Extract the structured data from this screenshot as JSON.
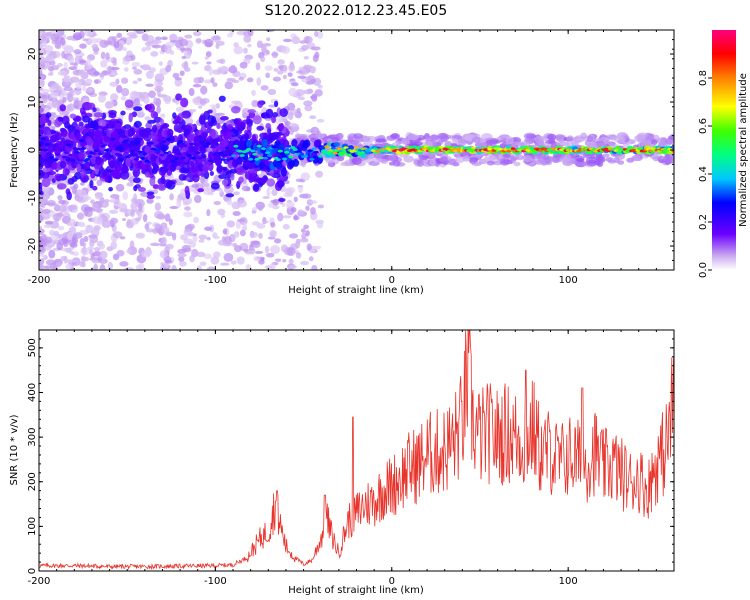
{
  "figure_title": "S120.2022.012.23.45.E05",
  "colors": {
    "snr_line": "#e8332b",
    "spectrum_low": "#e9d4f5",
    "spectrum_mid": "#6a00ff",
    "spectrum_high": "#ff1430"
  },
  "chart_data": [
    {
      "type": "heatmap",
      "title": "",
      "xlabel": "Height of straight line (km)",
      "ylabel": "Frequency (Hz)",
      "xlim": [
        -200,
        160
      ],
      "ylim": [
        -25,
        25
      ],
      "x_ticks": [
        -200,
        -100,
        0,
        100
      ],
      "y_ticks": [
        -20,
        -10,
        0,
        10,
        20
      ],
      "colorbar": {
        "label": "Normalized spectral amplitude",
        "range": [
          0,
          1
        ],
        "ticks": [
          0.0,
          0.2,
          0.4,
          0.6,
          0.8
        ],
        "colormap": "rainbow (purple-blue-cyan-green-yellow-red-pink)"
      },
      "description_of_structure": {
        "ridge_frequency_hz": 0,
        "scatter_region_km": [
          -200,
          -60
        ],
        "peak_amplitude_region_km": [
          -30,
          160
        ]
      }
    },
    {
      "type": "line",
      "title": "",
      "xlabel": "Height of straight line (km)",
      "ylabel": "SNR (10 * v/v)",
      "xlim": [
        -200,
        160
      ],
      "ylim": [
        0,
        540
      ],
      "x_ticks": [
        -200,
        -100,
        0,
        100
      ],
      "y_ticks": [
        0,
        100,
        200,
        300,
        400,
        500
      ],
      "series": [
        {
          "envelope_points": [
            [
              -200,
              12
            ],
            [
              -180,
              12
            ],
            [
              -160,
              10
            ],
            [
              -140,
              10
            ],
            [
              -120,
              11
            ],
            [
              -100,
              12
            ],
            [
              -90,
              14
            ],
            [
              -82,
              30
            ],
            [
              -75,
              70
            ],
            [
              -70,
              90
            ],
            [
              -66,
              150
            ],
            [
              -63,
              100
            ],
            [
              -60,
              55
            ],
            [
              -55,
              30
            ],
            [
              -50,
              15
            ],
            [
              -45,
              25
            ],
            [
              -40,
              75
            ],
            [
              -37,
              120
            ],
            [
              -34,
              80
            ],
            [
              -30,
              40
            ],
            [
              -25,
              110
            ],
            [
              -20,
              130
            ],
            [
              -15,
              150
            ],
            [
              -10,
              155
            ],
            [
              -5,
              180
            ],
            [
              0,
              190
            ],
            [
              5,
              210
            ],
            [
              10,
              230
            ],
            [
              15,
              240
            ],
            [
              20,
              260
            ],
            [
              25,
              265
            ],
            [
              30,
              270
            ],
            [
              35,
              290
            ],
            [
              40,
              330
            ],
            [
              43,
              440
            ],
            [
              46,
              330
            ],
            [
              50,
              300
            ],
            [
              55,
              310
            ],
            [
              60,
              300
            ],
            [
              65,
              310
            ],
            [
              70,
              300
            ],
            [
              75,
              290
            ],
            [
              80,
              320
            ],
            [
              85,
              260
            ],
            [
              90,
              270
            ],
            [
              95,
              240
            ],
            [
              100,
              260
            ],
            [
              105,
              250
            ],
            [
              110,
              240
            ],
            [
              115,
              270
            ],
            [
              120,
              230
            ],
            [
              125,
              240
            ],
            [
              130,
              220
            ],
            [
              135,
              200
            ],
            [
              140,
              210
            ],
            [
              145,
              180
            ],
            [
              150,
              240
            ],
            [
              155,
              270
            ],
            [
              158,
              330
            ],
            [
              160,
              400
            ]
          ],
          "notable_peaks": [
            [
              -65,
              180
            ],
            [
              -38,
              170
            ],
            [
              -22,
              345
            ],
            [
              44,
              540
            ],
            [
              76,
              450
            ],
            [
              108,
              410
            ],
            [
              160,
              480
            ]
          ]
        }
      ]
    }
  ]
}
